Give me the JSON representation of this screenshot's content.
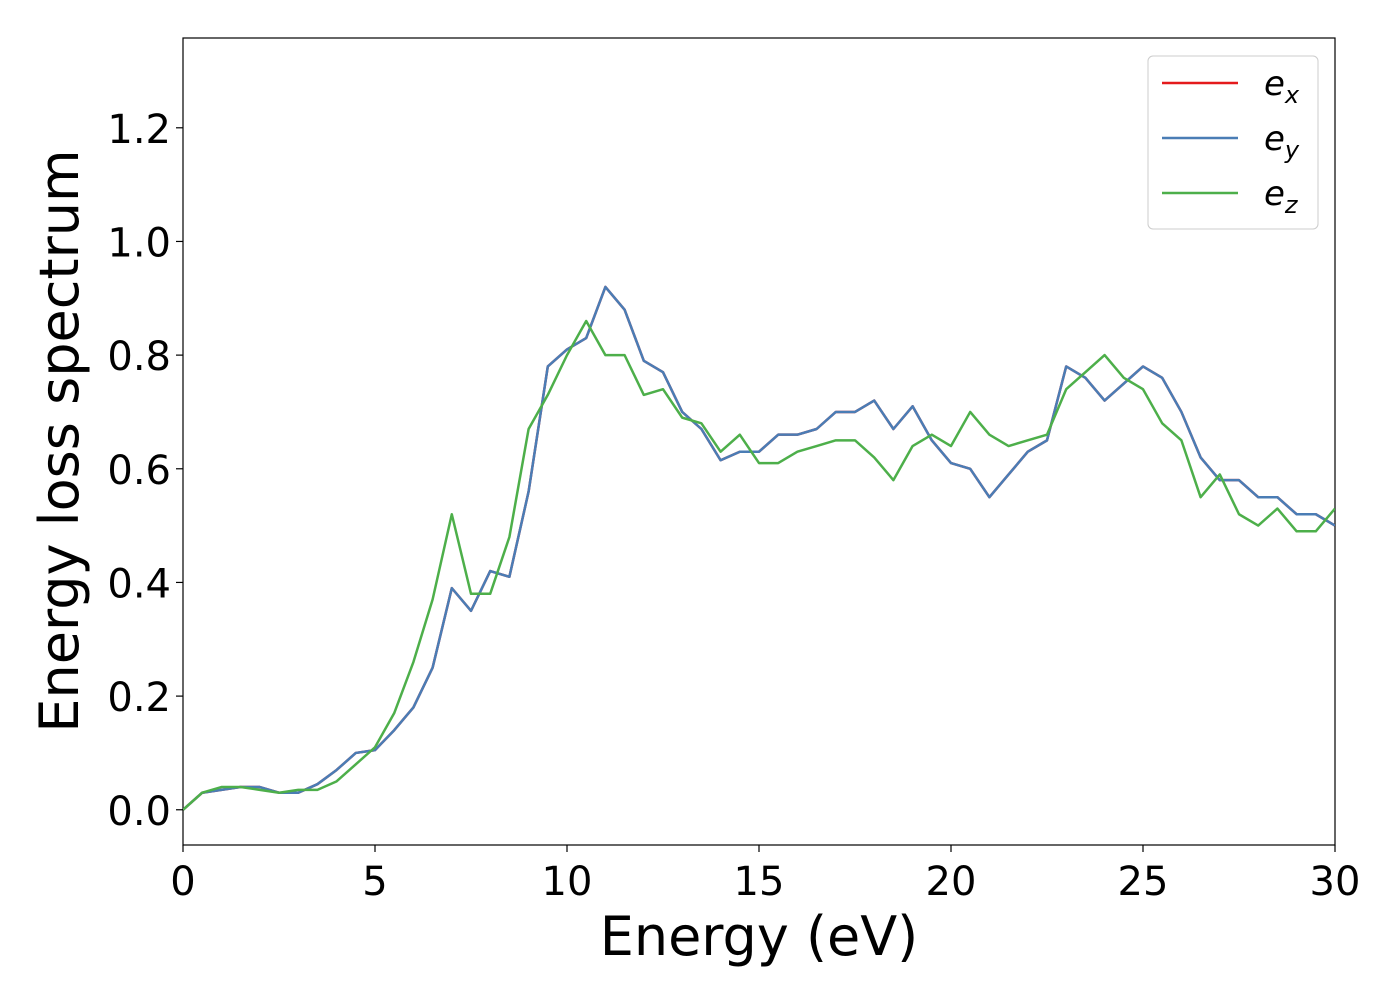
{
  "chart_data": {
    "type": "line",
    "x_label": "Energy (eV)",
    "y_label": "Energy loss spectrum",
    "x": [
      0,
      0.5,
      1,
      1.5,
      2,
      2.5,
      3,
      3.5,
      4,
      4.5,
      5,
      5.5,
      6,
      6.5,
      7,
      7.5,
      8,
      8.5,
      9,
      9.5,
      10,
      10.5,
      11,
      11.5,
      12,
      12.5,
      13,
      13.5,
      14,
      14.5,
      15,
      15.5,
      16,
      16.5,
      17,
      17.5,
      18,
      18.5,
      19,
      19.5,
      20,
      20.5,
      21,
      21.5,
      22,
      22.5,
      23,
      23.5,
      24,
      24.5,
      25,
      25.5,
      26,
      26.5,
      27,
      27.5,
      28,
      28.5,
      29,
      29.5,
      30
    ],
    "series": [
      {
        "name": "ex",
        "color": "#e41a1c",
        "values": [
          0.0,
          0.03,
          0.035,
          0.04,
          0.04,
          0.03,
          0.03,
          0.045,
          0.07,
          0.1,
          0.105,
          0.14,
          0.18,
          0.25,
          0.39,
          0.35,
          0.42,
          0.41,
          0.56,
          0.78,
          0.81,
          0.83,
          0.92,
          0.88,
          0.79,
          0.77,
          0.7,
          0.67,
          0.615,
          0.63,
          0.63,
          0.66,
          0.66,
          0.67,
          0.7,
          0.7,
          0.72,
          0.67,
          0.71,
          0.65,
          0.61,
          0.6,
          0.55,
          0.59,
          0.63,
          0.65,
          0.78,
          0.76,
          0.72,
          0.75,
          0.78,
          0.76,
          0.7,
          0.62,
          0.58,
          0.58,
          0.55,
          0.55,
          0.52,
          0.52,
          0.5
        ]
      },
      {
        "name": "ey",
        "color": "#4a7db5",
        "values": [
          0.0,
          0.03,
          0.035,
          0.04,
          0.04,
          0.03,
          0.03,
          0.045,
          0.07,
          0.1,
          0.105,
          0.14,
          0.18,
          0.25,
          0.39,
          0.35,
          0.42,
          0.41,
          0.56,
          0.78,
          0.81,
          0.83,
          0.92,
          0.88,
          0.79,
          0.77,
          0.7,
          0.67,
          0.615,
          0.63,
          0.63,
          0.66,
          0.66,
          0.67,
          0.7,
          0.7,
          0.72,
          0.67,
          0.71,
          0.65,
          0.61,
          0.6,
          0.55,
          0.59,
          0.63,
          0.65,
          0.78,
          0.76,
          0.72,
          0.75,
          0.78,
          0.76,
          0.7,
          0.62,
          0.58,
          0.58,
          0.55,
          0.55,
          0.52,
          0.52,
          0.5
        ]
      },
      {
        "name": "ez",
        "color": "#4daf4a",
        "values": [
          0.0,
          0.03,
          0.04,
          0.04,
          0.035,
          0.03,
          0.035,
          0.035,
          0.05,
          0.08,
          0.11,
          0.17,
          0.26,
          0.37,
          0.52,
          0.38,
          0.38,
          0.48,
          0.67,
          0.73,
          0.8,
          0.86,
          0.8,
          0.8,
          0.73,
          0.74,
          0.69,
          0.68,
          0.63,
          0.66,
          0.61,
          0.61,
          0.63,
          0.64,
          0.65,
          0.65,
          0.62,
          0.58,
          0.64,
          0.66,
          0.64,
          0.7,
          0.66,
          0.64,
          0.65,
          0.66,
          0.74,
          0.77,
          0.8,
          0.76,
          0.74,
          0.68,
          0.65,
          0.55,
          0.59,
          0.52,
          0.5,
          0.53,
          0.49,
          0.49,
          0.53
        ]
      }
    ],
    "xlim": [
      0,
      30
    ],
    "xticks": [
      0,
      5,
      10,
      15,
      20,
      25,
      30
    ],
    "ylim": [
      -0.062,
      1.358
    ],
    "yticks": [
      {
        "value": 0,
        "label": "0.0"
      },
      {
        "value": 0.2,
        "label": "0.2"
      },
      {
        "value": 0.4,
        "label": "0.4"
      },
      {
        "value": 0.6,
        "label": "0.6"
      },
      {
        "value": 0.8,
        "label": "0.8"
      },
      {
        "value": 1.0,
        "label": "1.0"
      },
      {
        "value": 1.2,
        "label": "1.2"
      }
    ],
    "grid": false,
    "legend": "upper right"
  }
}
